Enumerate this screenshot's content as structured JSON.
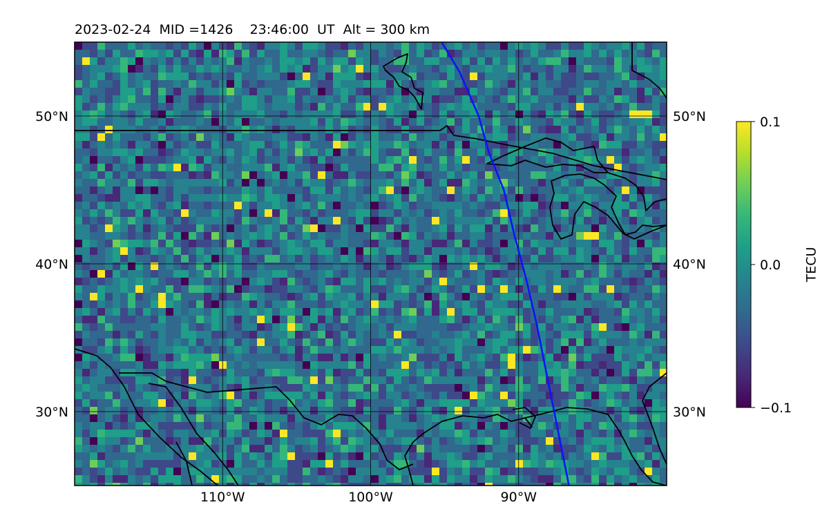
{
  "title": "2023-02-24  MID =1426    23:46:00  UT  Alt = 300 km",
  "map": {
    "lon_range": [
      -120,
      -80
    ],
    "lat_range": [
      25,
      55
    ],
    "grid": true,
    "lon_ticks": [
      {
        "value": -110,
        "label": "110°W"
      },
      {
        "value": -100,
        "label": "100°W"
      },
      {
        "value": -90,
        "label": "90°W"
      }
    ],
    "lat_ticks": [
      {
        "value": 30,
        "label": "30°N"
      },
      {
        "value": 40,
        "label": "40°N"
      },
      {
        "value": 50,
        "label": "50°N"
      }
    ],
    "field_range": [
      -0.1,
      0.1
    ],
    "track_color": "#0a14ff",
    "track": [
      {
        "lon": -95.2,
        "lat": 55
      },
      {
        "lon": -94.0,
        "lat": 53
      },
      {
        "lon": -92.7,
        "lat": 50
      },
      {
        "lon": -92.0,
        "lat": 47.5
      },
      {
        "lon": -91.0,
        "lat": 45
      },
      {
        "lon": -90.3,
        "lat": 42
      },
      {
        "lon": -89.5,
        "lat": 39
      },
      {
        "lon": -88.8,
        "lat": 36
      },
      {
        "lon": -88.0,
        "lat": 32
      },
      {
        "lon": -87.2,
        "lat": 28
      },
      {
        "lon": -86.6,
        "lat": 25
      }
    ]
  },
  "colorbar": {
    "label": "TECU",
    "ticks": [
      {
        "value": 0.1,
        "label": "0.1"
      },
      {
        "value": 0.0,
        "label": "0.0"
      },
      {
        "value": -0.1,
        "label": "−0.1"
      }
    ],
    "colors": [
      "#440154",
      "#482878",
      "#3e4989",
      "#31688e",
      "#26828e",
      "#1f9e89",
      "#35b779",
      "#6ece58",
      "#b5de2b",
      "#fde725"
    ]
  }
}
